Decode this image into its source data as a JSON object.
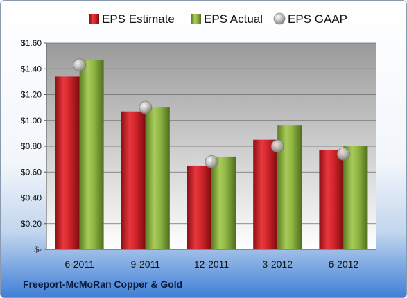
{
  "company": "Freeport-McMoRan Copper & Gold",
  "chart_data": {
    "type": "bar",
    "categories": [
      "6-2011",
      "9-2011",
      "12-2011",
      "3-2012",
      "6-2012"
    ],
    "series": [
      {
        "name": "EPS Estimate",
        "kind": "bar",
        "color": "#cc1f26",
        "values": [
          1.34,
          1.07,
          0.65,
          0.85,
          0.77
        ]
      },
      {
        "name": "EPS Actual",
        "kind": "bar",
        "color": "#8db13f",
        "values": [
          1.47,
          1.1,
          0.72,
          0.96,
          0.8
        ]
      },
      {
        "name": "EPS GAAP",
        "kind": "marker",
        "color": "#b8b8b8",
        "values": [
          1.43,
          1.1,
          0.68,
          0.8,
          0.74
        ]
      }
    ],
    "ylim": [
      0,
      1.6
    ],
    "yticks": [
      0,
      0.2,
      0.4,
      0.6,
      0.8,
      1.0,
      1.2,
      1.4,
      1.6
    ],
    "ytick_labels": [
      "$-",
      "$0.20",
      "$0.40",
      "$0.60",
      "$0.80",
      "$1.00",
      "$1.20",
      "$1.40",
      "$1.60"
    ],
    "grid": true,
    "legend_position": "top"
  }
}
